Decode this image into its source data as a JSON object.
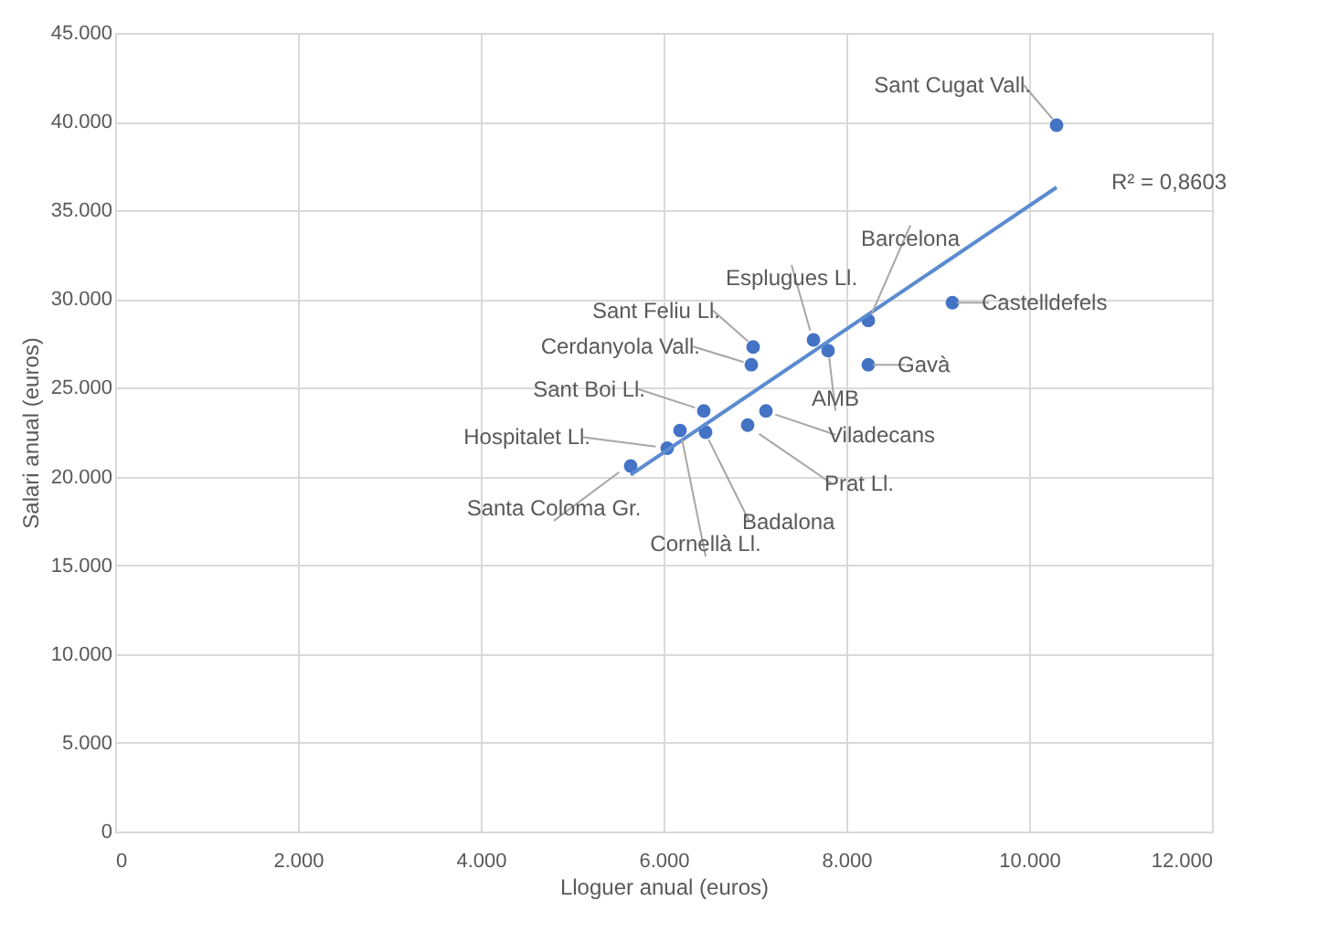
{
  "chart_data": {
    "type": "scatter",
    "xlabel": "Lloguer anual (euros)",
    "ylabel": "Salari anual (euros)",
    "xlim": [
      0,
      12000
    ],
    "ylim": [
      0,
      45000
    ],
    "xticks": [
      0,
      {
        "value": 2000,
        "label": "2.000"
      },
      {
        "value": 4000,
        "label": "4.000"
      },
      {
        "value": 6000,
        "label": "6.000"
      },
      {
        "value": 8000,
        "label": "8.000"
      },
      {
        "value": 10000,
        "label": "10.000"
      },
      {
        "value": 12000,
        "label": "12.000"
      }
    ],
    "yticks": [
      0,
      {
        "value": 5000,
        "label": "5.000"
      },
      {
        "value": 10000,
        "label": "10.000"
      },
      {
        "value": 15000,
        "label": "15.000"
      },
      {
        "value": 20000,
        "label": "20.000"
      },
      {
        "value": 25000,
        "label": "25.000"
      },
      {
        "value": 30000,
        "label": "30.000"
      },
      {
        "value": 35000,
        "label": "35.000"
      },
      {
        "value": 40000,
        "label": "40.000"
      },
      {
        "value": 45000,
        "label": "45.000"
      }
    ],
    "grid": true,
    "marker": "circle",
    "series": [
      {
        "type": "scatter",
        "color": "#4472c4",
        "x": [
          10300,
          9160,
          8240,
          7640,
          7800,
          6980,
          6960,
          8240,
          6440,
          7120,
          6920,
          6460,
          6180,
          6040,
          5640
        ],
        "values": [
          39800,
          29800,
          28800,
          27700,
          27100,
          27300,
          26300,
          26300,
          23700,
          23700,
          22900,
          22500,
          22600,
          21600,
          20600
        ]
      },
      {
        "type": "line",
        "marker": "none",
        "color": "#5b8bd0",
        "x": [
          5640,
          10300
        ],
        "values": [
          20100,
          36300
        ]
      }
    ],
    "annotations": [
      {
        "text": "Sant Cugat Vall.",
        "x": 10300,
        "y": 39800
      },
      {
        "text": "Castelldefels",
        "x": 9160,
        "y": 29800
      },
      {
        "text": "Barcelona",
        "x": 8240,
        "y": 28800
      },
      {
        "text": "Esplugues Ll.",
        "x": 7640,
        "y": 27700
      },
      {
        "text": "AMB",
        "x": 7800,
        "y": 27100
      },
      {
        "text": "Sant Feliu Ll.",
        "x": 6980,
        "y": 27300
      },
      {
        "text": "Cerdanyola Vall.",
        "x": 6960,
        "y": 26300
      },
      {
        "text": "Gavà",
        "x": 8240,
        "y": 26300
      },
      {
        "text": "Sant Boi Ll.",
        "x": 6440,
        "y": 23700
      },
      {
        "text": "Viladecans",
        "x": 7120,
        "y": 23700
      },
      {
        "text": "Prat Ll.",
        "x": 6920,
        "y": 22900
      },
      {
        "text": "Badalona",
        "x": 6460,
        "y": 22500
      },
      {
        "text": "Cornellà Ll.",
        "x": 6180,
        "y": 22600
      },
      {
        "text": "Hospitalet Ll.",
        "x": 6040,
        "y": 21600
      },
      {
        "text": "Santa Coloma Gr.",
        "x": 5640,
        "y": 20600
      },
      {
        "text": "R² = 0,8603",
        "x": 10300,
        "y": 36300
      }
    ]
  }
}
